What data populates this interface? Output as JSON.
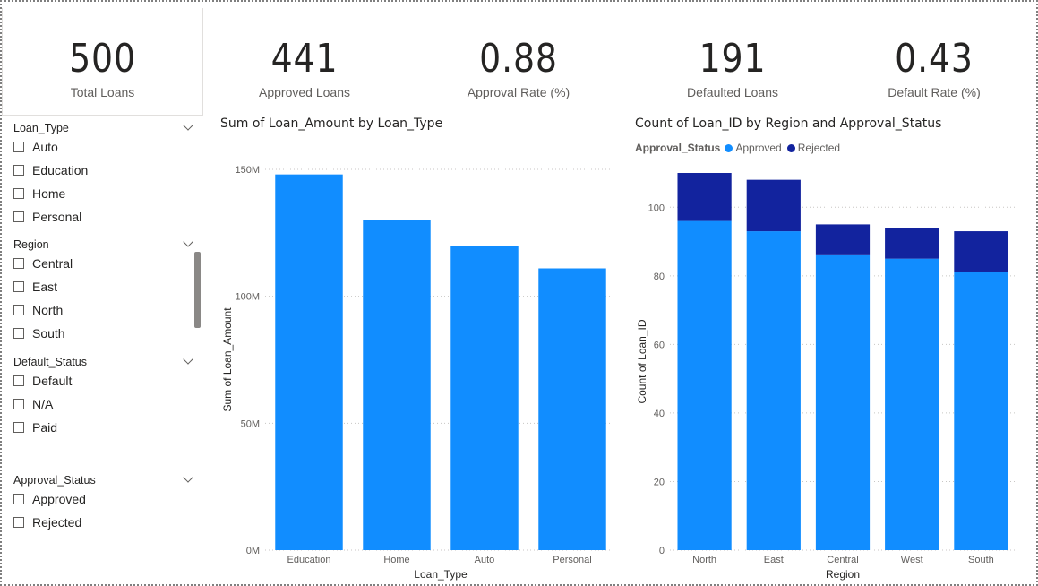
{
  "kpis": [
    {
      "value": "500",
      "label": "Total Loans"
    },
    {
      "value": "441",
      "label": "Approved Loans"
    },
    {
      "value": "0.88",
      "label": "Approval Rate (%)"
    },
    {
      "value": "191",
      "label": "Defaulted Loans"
    },
    {
      "value": "0.43",
      "label": "Default Rate (%)"
    }
  ],
  "slicers": [
    {
      "title": "Loan_Type",
      "items": [
        "Auto",
        "Education",
        "Home",
        "Personal"
      ]
    },
    {
      "title": "Region",
      "items": [
        "Central",
        "East",
        "North",
        "South"
      ]
    },
    {
      "title": "Default_Status",
      "items": [
        "Default",
        "N/A",
        "Paid"
      ]
    },
    {
      "title": "Approval_Status",
      "items": [
        "Approved",
        "Rejected"
      ]
    }
  ],
  "colors": {
    "approved": "#118DFF",
    "rejected": "#12239E",
    "grid": "#c8c6c4"
  },
  "chart_data": [
    {
      "type": "bar",
      "title": "Sum of Loan_Amount by Loan_Type",
      "categories": [
        "Education",
        "Home",
        "Auto",
        "Personal"
      ],
      "values": [
        148,
        130,
        120,
        111
      ],
      "xlabel": "Loan_Type",
      "ylabel": "Sum of Loan_Amount",
      "ylim": [
        0,
        150
      ],
      "yticks": [
        0,
        50,
        100,
        150
      ],
      "ytick_labels": [
        "0M",
        "50M",
        "100M",
        "150M"
      ],
      "grid": true
    },
    {
      "type": "bar",
      "stacked": true,
      "title": "Count of Loan_ID by Region and Approval_Status",
      "legend_title": "Approval_Status",
      "legend_position": "top-left",
      "categories": [
        "North",
        "East",
        "Central",
        "West",
        "South"
      ],
      "series": [
        {
          "name": "Approved",
          "values": [
            96,
            93,
            86,
            85,
            81
          ]
        },
        {
          "name": "Rejected",
          "values": [
            14,
            15,
            9,
            9,
            12
          ]
        }
      ],
      "xlabel": "Region",
      "ylabel": "Count of Loan_ID",
      "ylim": [
        0,
        110
      ],
      "yticks": [
        0,
        20,
        40,
        60,
        80,
        100
      ],
      "ytick_labels": [
        "0",
        "20",
        "40",
        "60",
        "80",
        "100"
      ],
      "grid": true
    }
  ]
}
